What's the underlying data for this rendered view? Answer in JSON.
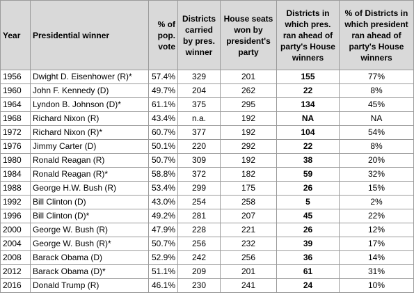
{
  "table": {
    "header": [
      "Year",
      "Presidential winner",
      "% of pop. vote",
      "Districts carried by pres. winner",
      "House seats won by president's party",
      "Districts in which pres. ran ahead of party's House winners",
      "% of Districts in which president ran ahead of party's House winners"
    ],
    "rows": [
      [
        "1956",
        "Dwight D. Eisenhower (R)*",
        "57.4%",
        "329",
        "201",
        "155",
        "77%"
      ],
      [
        "1960",
        "John F. Kennedy (D)",
        "49.7%",
        "204",
        "262",
        "22",
        "8%"
      ],
      [
        "1964",
        "Lyndon B. Johnson (D)*",
        "61.1%",
        "375",
        "295",
        "134",
        "45%"
      ],
      [
        "1968",
        "Richard Nixon (R)",
        "43.4%",
        "n.a.",
        "192",
        "NA",
        "NA"
      ],
      [
        "1972",
        "Richard Nixon (R)*",
        "60.7%",
        "377",
        "192",
        "104",
        "54%"
      ],
      [
        "1976",
        "Jimmy Carter (D)",
        "50.1%",
        "220",
        "292",
        "22",
        "8%"
      ],
      [
        "1980",
        "Ronald Reagan (R)",
        "50.7%",
        "309",
        "192",
        "38",
        "20%"
      ],
      [
        "1984",
        "Ronald Reagan (R)*",
        "58.8%",
        "372",
        "182",
        "59",
        "32%"
      ],
      [
        "1988",
        "George H.W. Bush (R)",
        "53.4%",
        "299",
        "175",
        "26",
        "15%"
      ],
      [
        "1992",
        "Bill Clinton (D)",
        "43.0%",
        "254",
        "258",
        "5",
        "2%"
      ],
      [
        "1996",
        "Bill Clinton (D)*",
        "49.2%",
        "281",
        "207",
        "45",
        "22%"
      ],
      [
        "2000",
        "George W. Bush (R)",
        "47.9%",
        "228",
        "221",
        "26",
        "12%"
      ],
      [
        "2004",
        "George W. Bush (R)*",
        "50.7%",
        "256",
        "232",
        "39",
        "17%"
      ],
      [
        "2008",
        "Barack Obama (D)",
        "52.9%",
        "242",
        "256",
        "36",
        "14%"
      ],
      [
        "2012",
        "Barack Obama (D)*",
        "51.1%",
        "209",
        "201",
        "61",
        "31%"
      ],
      [
        "2016",
        "Donald Trump (R)",
        "46.1%",
        "230",
        "241",
        "24",
        "10%"
      ]
    ]
  }
}
